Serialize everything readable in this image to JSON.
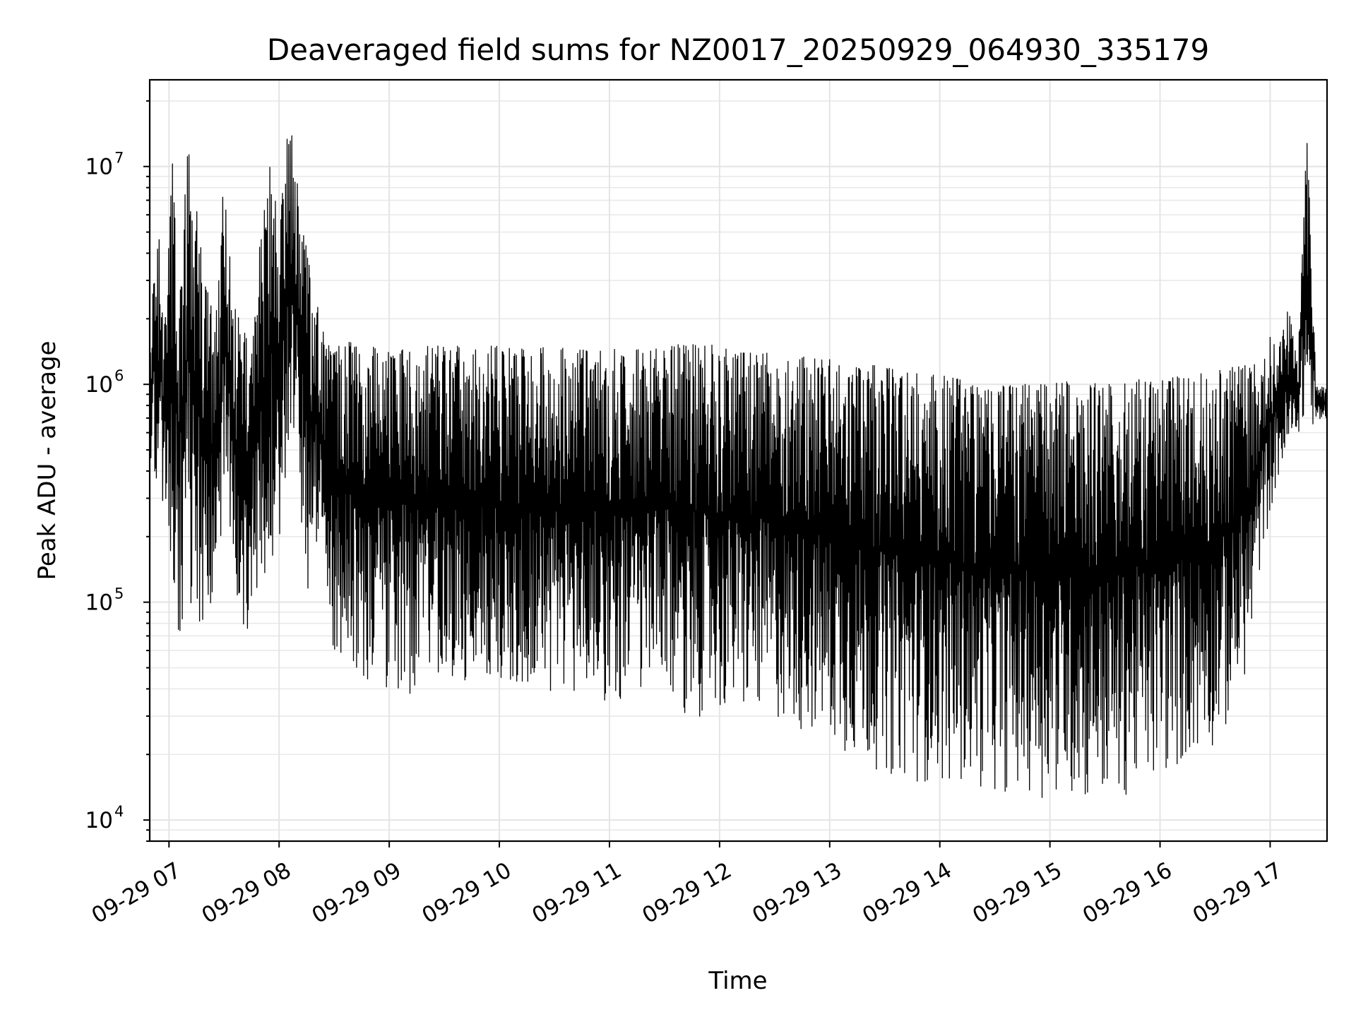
{
  "chart_data": {
    "type": "line",
    "title": "Deaveraged field sums for NZ0017_20250929_064930_335179",
    "xlabel": "Time",
    "ylabel": "Peak ADU - average",
    "yscale": "log",
    "ylim": [
      8000,
      25000000
    ],
    "xlim": [
      "09-29 06:49:30",
      "09-29 17:31:00"
    ],
    "grid": true,
    "line_color": "#000000",
    "x_tick_labels": [
      "09-29 07",
      "09-29 08",
      "09-29 09",
      "09-29 10",
      "09-29 11",
      "09-29 12",
      "09-29 13",
      "09-29 14",
      "09-29 15",
      "09-29 16",
      "09-29 17"
    ],
    "x_tick_times": [
      "09-29 07:00",
      "09-29 08:00",
      "09-29 09:00",
      "09-29 10:00",
      "09-29 11:00",
      "09-29 12:00",
      "09-29 13:00",
      "09-29 14:00",
      "09-29 15:00",
      "09-29 16:00",
      "09-29 17:00"
    ],
    "y_ticks": [
      {
        "value": 10000,
        "base": "10",
        "exp": "4"
      },
      {
        "value": 100000,
        "base": "10",
        "exp": "5"
      },
      {
        "value": 1000000,
        "base": "10",
        "exp": "6"
      },
      {
        "value": 10000000,
        "base": "10",
        "exp": "7"
      }
    ],
    "series": [
      {
        "x": [
          "09-29 06:49:30",
          "09-29 06:52",
          "09-29 06:55",
          "09-29 06:58",
          "09-29 07:02",
          "09-29 07:06",
          "09-29 07:10",
          "09-29 07:15",
          "09-29 07:20",
          "09-29 07:25",
          "09-29 07:30",
          "09-29 07:35",
          "09-29 07:40",
          "09-29 07:45",
          "09-29 07:50",
          "09-29 07:55",
          "09-29 08:00",
          "09-29 08:05",
          "09-29 08:10",
          "09-29 08:15",
          "09-29 08:20",
          "09-29 08:25",
          "09-29 08:30",
          "09-29 08:35",
          "09-29 08:40",
          "09-29 08:45",
          "09-29 08:50",
          "09-29 08:55",
          "09-29 09:00",
          "09-29 09:10",
          "09-29 09:20",
          "09-29 09:30",
          "09-29 09:45",
          "09-29 10:00",
          "09-29 10:15",
          "09-29 10:30",
          "09-29 10:45",
          "09-29 11:00",
          "09-29 11:15",
          "09-29 11:30",
          "09-29 11:45",
          "09-29 12:00",
          "09-29 12:15",
          "09-29 12:30",
          "09-29 12:45",
          "09-29 13:00",
          "09-29 13:15",
          "09-29 13:30",
          "09-29 13:45",
          "09-29 14:00",
          "09-29 14:15",
          "09-29 14:30",
          "09-29 14:45",
          "09-29 15:00",
          "09-29 15:15",
          "09-29 15:30",
          "09-29 15:45",
          "09-29 16:00",
          "09-29 16:15",
          "09-29 16:30",
          "09-29 16:40",
          "09-29 16:50",
          "09-29 16:55",
          "09-29 17:00",
          "09-29 17:05",
          "09-29 17:10",
          "09-29 17:15",
          "09-29 17:20",
          "09-29 17:25",
          "09-29 17:31"
        ],
        "high": [
          1200000,
          3800000,
          4800000,
          2000000,
          11000000,
          3500000,
          13000000,
          6500000,
          3000000,
          2000000,
          9000000,
          2500000,
          1800000,
          1500000,
          5000000,
          10000000,
          6000000,
          17000000,
          13000000,
          4000000,
          2500000,
          1600000,
          1500000,
          1500000,
          1600000,
          1500000,
          1500000,
          1500000,
          1500000,
          1500000,
          1500000,
          1500000,
          1500000,
          1500000,
          1450000,
          1500000,
          1450000,
          1450000,
          1450000,
          1500000,
          1550000,
          1500000,
          1400000,
          1400000,
          1350000,
          1300000,
          1250000,
          1200000,
          1150000,
          1100000,
          1050000,
          1000000,
          1000000,
          1000000,
          1050000,
          1000000,
          1050000,
          1050000,
          1100000,
          1150000,
          1200000,
          1250000,
          1250000,
          1650000,
          1500000,
          2300000,
          1200000,
          16000000,
          1000000,
          950000
        ],
        "low": [
          500000,
          300000,
          250000,
          180000,
          100000,
          60000,
          120000,
          65000,
          90000,
          80000,
          200000,
          120000,
          58000,
          90000,
          80000,
          150000,
          200000,
          300000,
          400000,
          85000,
          130000,
          140000,
          55000,
          50000,
          45000,
          42000,
          40000,
          38000,
          40000,
          36000,
          38000,
          37000,
          40000,
          35000,
          38000,
          36000,
          34000,
          35000,
          34000,
          33000,
          30000,
          29000,
          30000,
          28000,
          25000,
          22000,
          18000,
          16000,
          15000,
          14500,
          14000,
          13500,
          13000,
          12500,
          12000,
          11500,
          13000,
          15000,
          18000,
          22000,
          28000,
          60000,
          150000,
          250000,
          380000,
          400000,
          600000,
          600000,
          650000,
          700000
        ]
      }
    ]
  }
}
